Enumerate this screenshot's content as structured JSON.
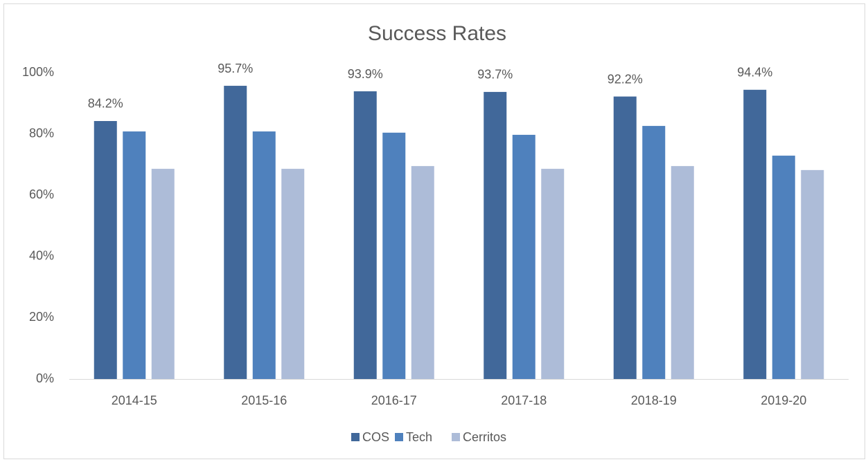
{
  "chart_data": {
    "type": "bar",
    "title": "Success Rates",
    "categories": [
      "2014-15",
      "2015-16",
      "2016-17",
      "2017-18",
      "2018-19",
      "2019-20"
    ],
    "series": [
      {
        "name": "COS",
        "color": "#41689a",
        "values": [
          84.2,
          95.7,
          93.9,
          93.7,
          92.2,
          94.4
        ],
        "value_labels": [
          "84.2%",
          "95.7%",
          "93.9%",
          "93.7%",
          "92.2%",
          "94.4%"
        ]
      },
      {
        "name": "Tech",
        "color": "#4f81bd",
        "values": [
          80.8,
          80.8,
          80.4,
          79.7,
          82.6,
          72.9
        ]
      },
      {
        "name": "Cerritos",
        "color": "#adbcd8",
        "values": [
          68.6,
          68.6,
          69.5,
          68.6,
          69.5,
          68.2
        ]
      }
    ],
    "ylim": [
      0,
      100
    ],
    "yticks": [
      {
        "value": 0,
        "label": "0%"
      },
      {
        "value": 20,
        "label": "20%"
      },
      {
        "value": 40,
        "label": "40%"
      },
      {
        "value": 60,
        "label": "60%"
      },
      {
        "value": 80,
        "label": "80%"
      },
      {
        "value": 100,
        "label": "100%"
      }
    ],
    "grid": false,
    "legend": "bottom"
  }
}
